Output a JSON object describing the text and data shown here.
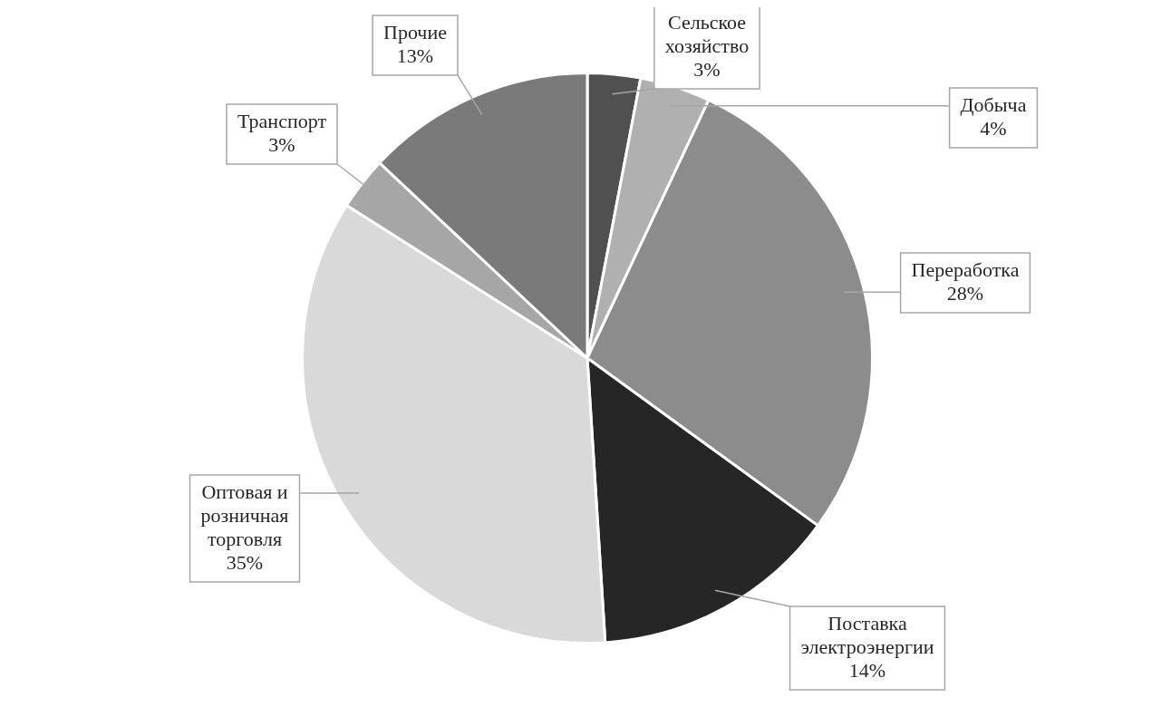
{
  "chart_data": {
    "type": "pie",
    "categories": [
      "Сельское хозяйство",
      "Добыча",
      "Переработка",
      "Поставка электроэнергии",
      "Оптовая и розничная торговля",
      "Транспорт",
      "Прочие"
    ],
    "values": [
      3,
      4,
      28,
      14,
      35,
      3,
      13
    ],
    "value_labels": [
      "3%",
      "4%",
      "28%",
      "14%",
      "35%",
      "3%",
      "13%"
    ],
    "colors": [
      "#505050",
      "#b0b0b0",
      "#8c8c8c",
      "#262626",
      "#d9d9d9",
      "#a6a6a6",
      "#7a7a7a"
    ],
    "legend": false
  }
}
